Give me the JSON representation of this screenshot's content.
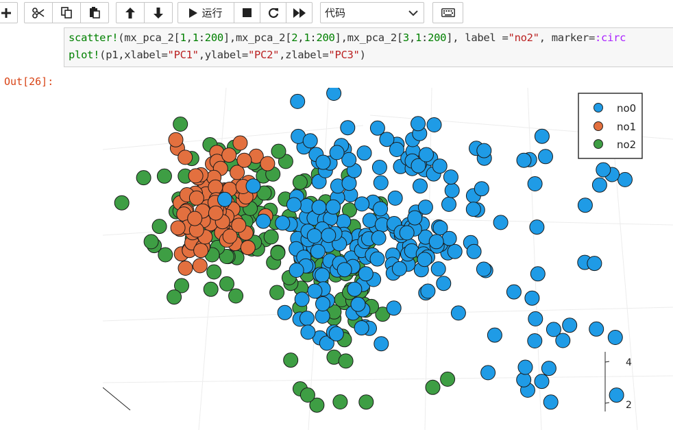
{
  "toolbar": {
    "add_icon": "plus-icon",
    "cut_icon": "scissors-icon",
    "copy_icon": "copy-icon",
    "paste_icon": "paste-icon",
    "move_up_icon": "arrow-up-icon",
    "move_down_icon": "arrow-down-icon",
    "run_label": "运行",
    "cell_type": "代码",
    "keyboard_icon": "keyboard-icon"
  },
  "code": {
    "line1": "scatter!(mx_pca_2[1,1:200],mx_pca_2[2,1:200],mx_pca_2[3,1:200], label =\"no2\", marker=:circ",
    "line2": "plot!(p1,xlabel=\"PC1\",ylabel=\"PC2\",zlabel=\"PC3\")"
  },
  "output": {
    "prompt": "Out[26]:"
  },
  "chart_data": {
    "type": "scatter",
    "title": "",
    "xlabel": "",
    "ylabel": "",
    "legend_position": "top-right",
    "series": [
      {
        "name": "no0",
        "color": "#1f9be6"
      },
      {
        "name": "no1",
        "color": "#e3703f"
      },
      {
        "name": "no2",
        "color": "#3e9e44"
      }
    ],
    "z_ticks": [
      "4",
      "2"
    ],
    "grid": true
  }
}
